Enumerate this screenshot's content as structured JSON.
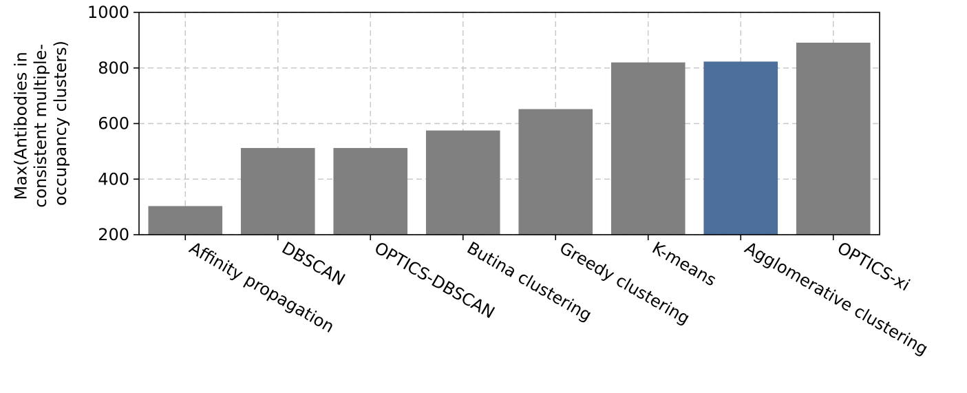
{
  "chart_data": {
    "type": "bar",
    "title": "",
    "xlabel": "",
    "ylabel_lines": [
      "Max(Antibodies in",
      "consistent multiple-",
      "occupancy clusters)"
    ],
    "categories": [
      "Affinity propagation",
      "DBSCAN",
      "OPTICS-DBSCAN",
      "Butina clustering",
      "Greedy clustering",
      "K-means",
      "Agglomerative clustering",
      "OPTICS-xi"
    ],
    "values": [
      303,
      512,
      512,
      575,
      652,
      820,
      823,
      891
    ],
    "ylim": [
      200,
      1000
    ],
    "yticks": [
      200,
      400,
      600,
      800,
      1000
    ],
    "grid": true,
    "colors": {
      "default_bar": "#808080",
      "highlight_bar": "#4c6e9b"
    },
    "highlight_category": "Agglomerative clustering"
  }
}
